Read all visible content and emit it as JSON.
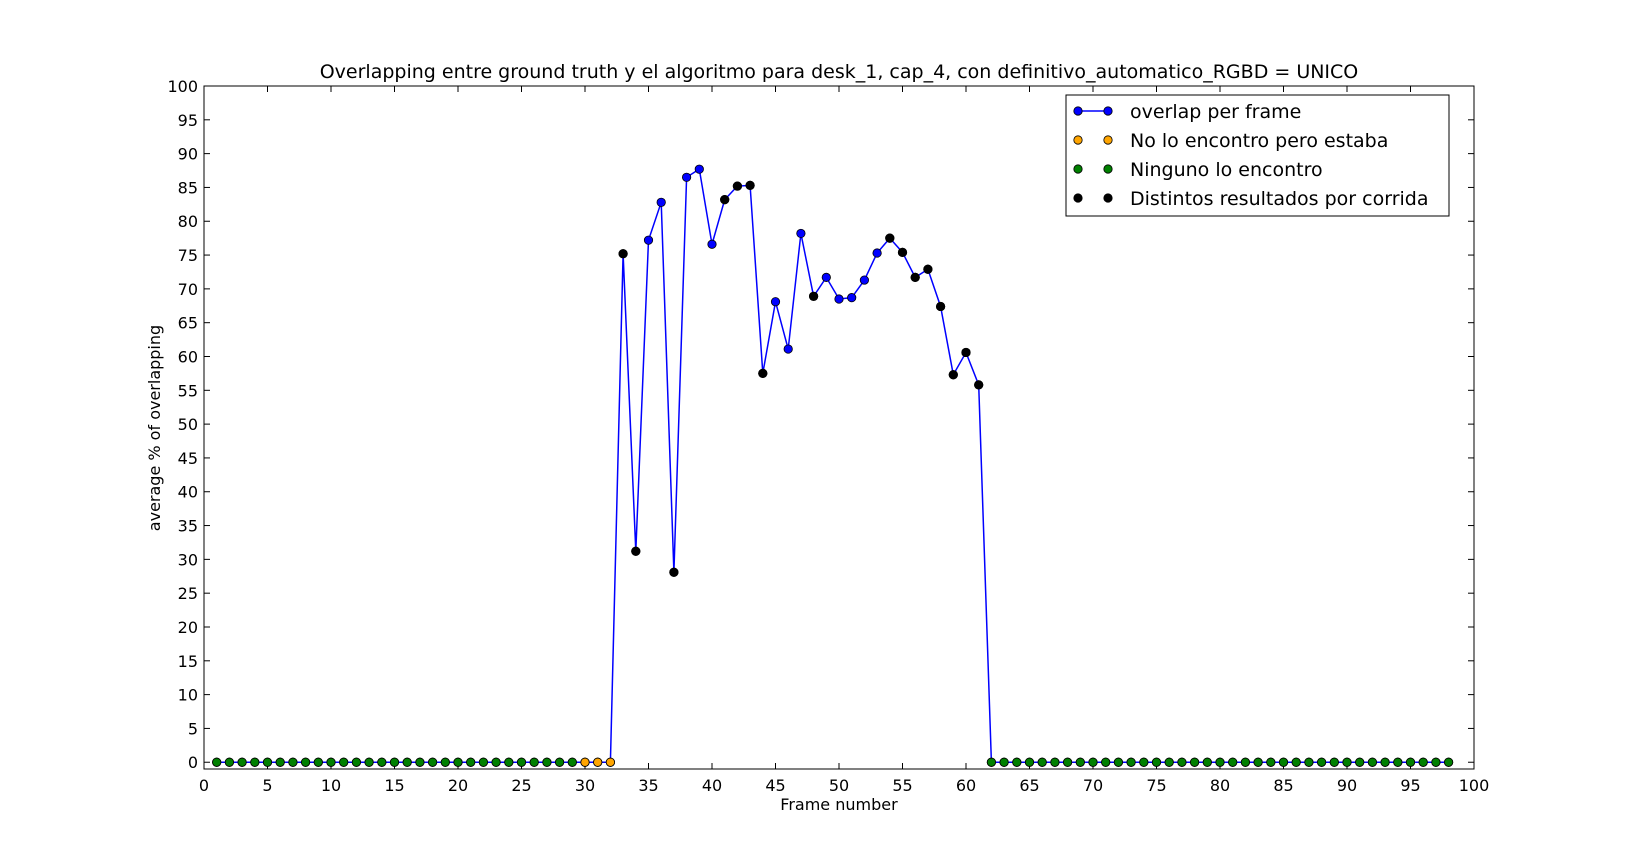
{
  "chart_data": {
    "type": "line",
    "title": "Overlapping entre ground truth y el algoritmo para desk_1, cap_4, con definitivo_automatico_RGBD = UNICO",
    "xlabel": "Frame number",
    "ylabel": "average % of overlapping",
    "xlim": [
      0,
      100
    ],
    "ylim": [
      -1,
      100
    ],
    "xticks": [
      0,
      5,
      10,
      15,
      20,
      25,
      30,
      35,
      40,
      45,
      50,
      55,
      60,
      65,
      70,
      75,
      80,
      85,
      90,
      95,
      100
    ],
    "yticks": [
      0,
      5,
      10,
      15,
      20,
      25,
      30,
      35,
      40,
      45,
      50,
      55,
      60,
      65,
      70,
      75,
      80,
      85,
      90,
      95,
      100
    ],
    "grid": false,
    "legend_position": "top-right",
    "legend": [
      {
        "label": "overlap per frame",
        "color": "#0000ff",
        "line": true
      },
      {
        "label": "No lo encontro pero estaba",
        "color": "#ffa500",
        "line": false
      },
      {
        "label": "Ninguno lo encontro",
        "color": "#008000",
        "line": false
      },
      {
        "label": "Distintos resultados por corrida",
        "color": "#000000",
        "line": false
      }
    ],
    "series": [
      {
        "name": "overlap per frame",
        "color": "#0000ff",
        "x": [
          1,
          2,
          3,
          4,
          5,
          6,
          7,
          8,
          9,
          10,
          11,
          12,
          13,
          14,
          15,
          16,
          17,
          18,
          19,
          20,
          21,
          22,
          23,
          24,
          25,
          26,
          27,
          28,
          29,
          30,
          31,
          32,
          33,
          34,
          35,
          36,
          37,
          38,
          39,
          40,
          41,
          42,
          43,
          44,
          45,
          46,
          47,
          48,
          49,
          50,
          51,
          52,
          53,
          54,
          55,
          56,
          57,
          58,
          59,
          60,
          61,
          62,
          63,
          64,
          65,
          66,
          67,
          68,
          69,
          70,
          71,
          72,
          73,
          74,
          75,
          76,
          77,
          78,
          79,
          80,
          81,
          82,
          83,
          84,
          85,
          86,
          87,
          88,
          89,
          90,
          91,
          92,
          93,
          94,
          95,
          96,
          97,
          98
        ],
        "y": [
          0,
          0,
          0,
          0,
          0,
          0,
          0,
          0,
          0,
          0,
          0,
          0,
          0,
          0,
          0,
          0,
          0,
          0,
          0,
          0,
          0,
          0,
          0,
          0,
          0,
          0,
          0,
          0,
          0,
          0,
          0,
          0,
          75.2,
          31.2,
          77.2,
          82.8,
          28.1,
          86.5,
          87.7,
          76.6,
          83.2,
          85.2,
          85.3,
          57.5,
          68.1,
          61.1,
          78.2,
          68.9,
          71.7,
          68.5,
          68.7,
          71.3,
          75.3,
          77.5,
          75.4,
          71.7,
          72.9,
          67.4,
          57.3,
          60.6,
          55.8,
          0,
          0,
          0,
          0,
          0,
          0,
          0,
          0,
          0,
          0,
          0,
          0,
          0,
          0,
          0,
          0,
          0,
          0,
          0,
          0,
          0,
          0,
          0,
          0,
          0,
          0,
          0,
          0,
          0,
          0,
          0,
          0,
          0,
          0,
          0,
          0,
          0
        ]
      },
      {
        "name": "No lo encontro pero estaba",
        "color": "#ffa500",
        "x": [
          30,
          31,
          32
        ],
        "y": [
          0,
          0,
          0
        ]
      },
      {
        "name": "Ninguno lo encontro",
        "color": "#008000",
        "x": [
          1,
          2,
          3,
          4,
          5,
          6,
          7,
          8,
          9,
          10,
          11,
          12,
          13,
          14,
          15,
          16,
          17,
          18,
          19,
          20,
          21,
          22,
          23,
          24,
          25,
          26,
          27,
          28,
          29,
          62,
          63,
          64,
          65,
          66,
          67,
          68,
          69,
          70,
          71,
          72,
          73,
          74,
          75,
          76,
          77,
          78,
          79,
          80,
          81,
          82,
          83,
          84,
          85,
          86,
          87,
          88,
          89,
          90,
          91,
          92,
          93,
          94,
          95,
          96,
          97,
          98
        ],
        "y": [
          0,
          0,
          0,
          0,
          0,
          0,
          0,
          0,
          0,
          0,
          0,
          0,
          0,
          0,
          0,
          0,
          0,
          0,
          0,
          0,
          0,
          0,
          0,
          0,
          0,
          0,
          0,
          0,
          0,
          0,
          0,
          0,
          0,
          0,
          0,
          0,
          0,
          0,
          0,
          0,
          0,
          0,
          0,
          0,
          0,
          0,
          0,
          0,
          0,
          0,
          0,
          0,
          0,
          0,
          0,
          0,
          0,
          0,
          0,
          0,
          0,
          0,
          0,
          0,
          0,
          0
        ]
      },
      {
        "name": "Distintos resultados por corrida",
        "color": "#000000",
        "x": [
          33,
          34,
          37,
          41,
          42,
          43,
          44,
          48,
          54,
          55,
          56,
          57,
          58,
          59,
          60,
          61
        ],
        "y": [
          75.2,
          31.2,
          28.1,
          83.2,
          85.2,
          85.3,
          57.5,
          68.9,
          77.5,
          75.4,
          71.7,
          72.9,
          67.4,
          57.3,
          60.6,
          55.8
        ]
      }
    ]
  }
}
